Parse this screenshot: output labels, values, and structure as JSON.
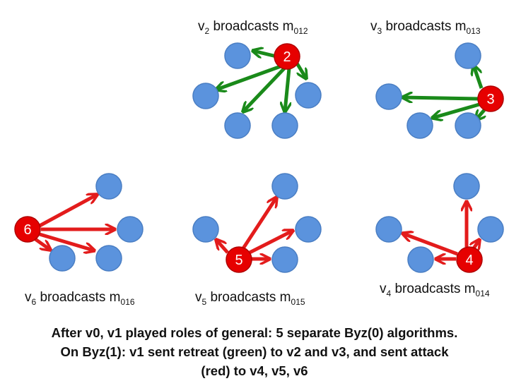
{
  "colors": {
    "node_fill": "#5b93dd",
    "node_stroke": "#4a7ec3",
    "general_fill": "#e60000",
    "general_stroke": "#b00000",
    "retreat": "#1a8a1a",
    "attack": "#e31c1c"
  },
  "panels": [
    {
      "id": "v2",
      "prefix": "v",
      "sub1": "2",
      "middle": " broadcasts m",
      "sub2": "012",
      "general_label": "2",
      "message": "retreat"
    },
    {
      "id": "v3",
      "prefix": "v",
      "sub1": "3",
      "middle": " broadcasts m",
      "sub2": "013",
      "general_label": "3",
      "message": "retreat"
    },
    {
      "id": "v6",
      "prefix": "v",
      "sub1": "6",
      "middle": " broadcasts m",
      "sub2": "016",
      "general_label": "6",
      "message": "attack"
    },
    {
      "id": "v5",
      "prefix": "v",
      "sub1": "5",
      "middle": " broadcasts m",
      "sub2": "015",
      "general_label": "5",
      "message": "attack"
    },
    {
      "id": "v4",
      "prefix": "v",
      "sub1": "4",
      "middle": " broadcasts m",
      "sub2": "014",
      "general_label": "4",
      "message": "attack"
    }
  ],
  "caption": {
    "line1": "After v0, v1 played roles of general: 5 separate Byz(0) algorithms.",
    "line2": "On Byz(1): v1 sent retreat (green) to v2 and v3, and sent attack",
    "line3": "(red) to v4, v5, v6"
  }
}
